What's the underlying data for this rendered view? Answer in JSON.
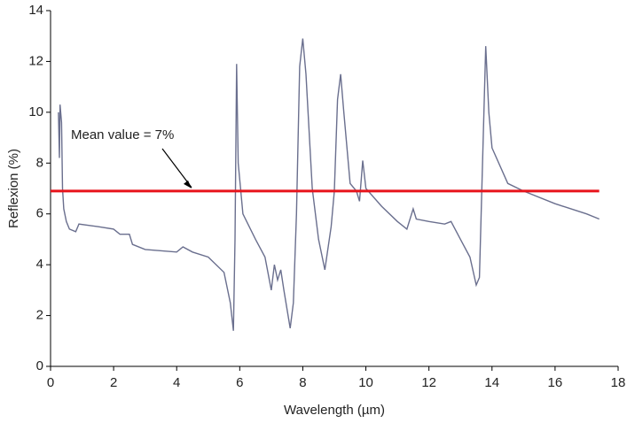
{
  "chart_data": {
    "type": "line",
    "xlabel": "Wavelength (µm)",
    "ylabel": "Reflexion (%)",
    "x": [
      0.25,
      0.28,
      0.3,
      0.35,
      0.38,
      0.42,
      0.5,
      0.6,
      0.8,
      0.9,
      1.5,
      2.0,
      2.2,
      2.5,
      2.6,
      3.0,
      4.0,
      4.2,
      4.5,
      5.0,
      5.5,
      5.7,
      5.8,
      5.85,
      5.9,
      5.95,
      6.1,
      6.5,
      6.8,
      7.0,
      7.1,
      7.2,
      7.3,
      7.4,
      7.6,
      7.7,
      7.8,
      7.9,
      8.0,
      8.1,
      8.3,
      8.5,
      8.7,
      8.9,
      9.0,
      9.1,
      9.2,
      9.3,
      9.5,
      9.7,
      9.8,
      9.9,
      10.0,
      10.5,
      11.0,
      11.3,
      11.5,
      11.6,
      12.0,
      12.5,
      12.7,
      13.0,
      13.3,
      13.5,
      13.6,
      13.7,
      13.8,
      13.9,
      14.0,
      14.5,
      15.0,
      16.0,
      17.0,
      17.4
    ],
    "values": [
      10.0,
      8.2,
      10.3,
      9.6,
      7.0,
      6.2,
      5.7,
      5.4,
      5.3,
      5.6,
      5.5,
      5.4,
      5.2,
      5.2,
      4.8,
      4.6,
      4.5,
      4.7,
      4.5,
      4.3,
      3.7,
      2.5,
      1.4,
      5.0,
      11.9,
      8.0,
      6.0,
      5.0,
      4.3,
      3.0,
      4.0,
      3.4,
      3.8,
      3.0,
      1.5,
      2.5,
      6.0,
      11.8,
      12.9,
      11.5,
      7.0,
      5.0,
      3.8,
      5.5,
      6.9,
      10.5,
      11.5,
      10.0,
      7.2,
      6.9,
      6.5,
      8.1,
      7.0,
      6.3,
      5.7,
      5.4,
      6.2,
      5.8,
      5.7,
      5.6,
      5.7,
      5.0,
      4.3,
      3.2,
      3.5,
      8.0,
      12.6,
      10.0,
      8.6,
      7.2,
      6.9,
      6.4,
      6.0,
      5.8
    ],
    "color": "#6a6f8e",
    "mean_line": {
      "value": 6.9,
      "color": "#e8141b",
      "label": "Mean value = 7%"
    },
    "xlim": [
      0,
      18
    ],
    "xticks": [
      0,
      2,
      4,
      6,
      8,
      10,
      12,
      14,
      16,
      18
    ],
    "ylim": [
      0,
      14
    ],
    "yticks": [
      0,
      2,
      4,
      6,
      8,
      10,
      12,
      14
    ]
  }
}
